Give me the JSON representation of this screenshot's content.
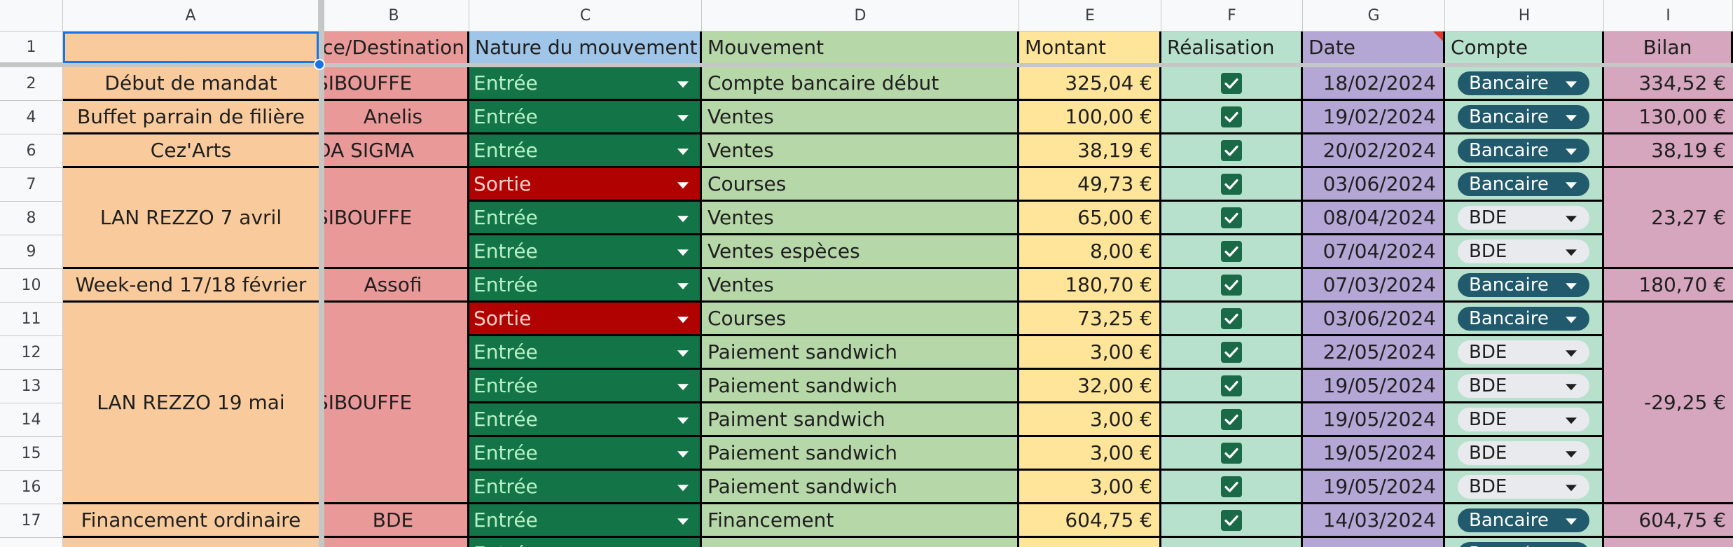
{
  "columns": [
    "A",
    "B",
    "C",
    "D",
    "E",
    "F",
    "G",
    "H",
    "I"
  ],
  "header_row": {
    "row_number": "1",
    "A": "",
    "B": "ce/Destination",
    "C": "Nature du mouvement",
    "D": "Mouvement",
    "E": "Montant",
    "F": "Réalisation",
    "G": "Date",
    "H": "Compte",
    "I": "Bilan"
  },
  "row_numbers": [
    "2",
    "4",
    "6",
    "7",
    "8",
    "9",
    "10",
    "11",
    "12",
    "13",
    "14",
    "15",
    "16",
    "17",
    ""
  ],
  "groups": [
    {
      "event": "Début de mandat",
      "source": "SIBOUFFE",
      "bilan": "334,52 €"
    },
    {
      "event": "Buffet parrain de filière",
      "source": "Anelis",
      "bilan": "130,00 €"
    },
    {
      "event": "Cez'Arts",
      "source": "DA SIGMA",
      "bilan": "38,19 €"
    },
    {
      "event": "LAN REZZO 7 avril",
      "source": "SIBOUFFE",
      "bilan": "23,27 €"
    },
    {
      "event": "Week-end 17/18 février",
      "source": "Assofi",
      "bilan": "180,70 €"
    },
    {
      "event": "LAN REZZO 19 mai",
      "source": "SIBOUFFE",
      "bilan": "-29,25 €"
    },
    {
      "event": "Financement ordinaire",
      "source": "BDE",
      "bilan": "604,75 €"
    }
  ],
  "rows": [
    {
      "nature": "Entrée",
      "mouvement": "Compte bancaire début",
      "montant": "325,04 €",
      "realise": true,
      "date": "18/02/2024",
      "compte": "Bancaire"
    },
    {
      "nature": "Entrée",
      "mouvement": "Ventes",
      "montant": "100,00 €",
      "realise": true,
      "date": "19/02/2024",
      "compte": "Bancaire"
    },
    {
      "nature": "Entrée",
      "mouvement": "Ventes",
      "montant": "38,19 €",
      "realise": true,
      "date": "20/02/2024",
      "compte": "Bancaire"
    },
    {
      "nature": "Sortie",
      "mouvement": "Courses",
      "montant": "49,73 €",
      "realise": true,
      "date": "03/06/2024",
      "compte": "Bancaire"
    },
    {
      "nature": "Entrée",
      "mouvement": "Ventes",
      "montant": "65,00 €",
      "realise": true,
      "date": "08/04/2024",
      "compte": "BDE"
    },
    {
      "nature": "Entrée",
      "mouvement": "Ventes espèces",
      "montant": "8,00 €",
      "realise": true,
      "date": "07/04/2024",
      "compte": "BDE"
    },
    {
      "nature": "Entrée",
      "mouvement": "Ventes",
      "montant": "180,70 €",
      "realise": true,
      "date": "07/03/2024",
      "compte": "Bancaire"
    },
    {
      "nature": "Sortie",
      "mouvement": "Courses",
      "montant": "73,25 €",
      "realise": true,
      "date": "03/06/2024",
      "compte": "Bancaire"
    },
    {
      "nature": "Entrée",
      "mouvement": "Paiement sandwich",
      "montant": "3,00 €",
      "realise": true,
      "date": "22/05/2024",
      "compte": "BDE"
    },
    {
      "nature": "Entrée",
      "mouvement": "Paiement sandwich",
      "montant": "32,00 €",
      "realise": true,
      "date": "19/05/2024",
      "compte": "BDE"
    },
    {
      "nature": "Entrée",
      "mouvement": "Paiment sandwich",
      "montant": "3,00 €",
      "realise": true,
      "date": "19/05/2024",
      "compte": "BDE"
    },
    {
      "nature": "Entrée",
      "mouvement": "Paiement sandwich",
      "montant": "3,00 €",
      "realise": true,
      "date": "19/05/2024",
      "compte": "BDE"
    },
    {
      "nature": "Entrée",
      "mouvement": "Paiement sandwich",
      "montant": "3,00 €",
      "realise": true,
      "date": "19/05/2024",
      "compte": "BDE"
    },
    {
      "nature": "Entrée",
      "mouvement": "Financement",
      "montant": "604,75 €",
      "realise": true,
      "date": "14/03/2024",
      "compte": "Bancaire"
    },
    {
      "nature": "Entrée",
      "mouvement": "",
      "montant": "",
      "realise": false,
      "date": "",
      "compte": "Bancaire"
    }
  ],
  "colors": {
    "col_A": "#f9cb9c",
    "col_B": "#ea9999",
    "nature_header": "#9fc5e8",
    "col_D": "#b6d7a8",
    "col_E": "#ffe599",
    "col_F": "#b7e1cd",
    "col_G": "#b4a7d6",
    "col_H": "#b7e1cd",
    "col_I": "#d5a6bd",
    "entree_bg": "#137547",
    "entree_text": "#b7f0c6",
    "sortie_bg": "#b10202",
    "sortie_text": "#ffcfc9",
    "pill_bancaire": "#215a6c",
    "pill_bde": "#e8eaed",
    "selection": "#1a73e8"
  }
}
